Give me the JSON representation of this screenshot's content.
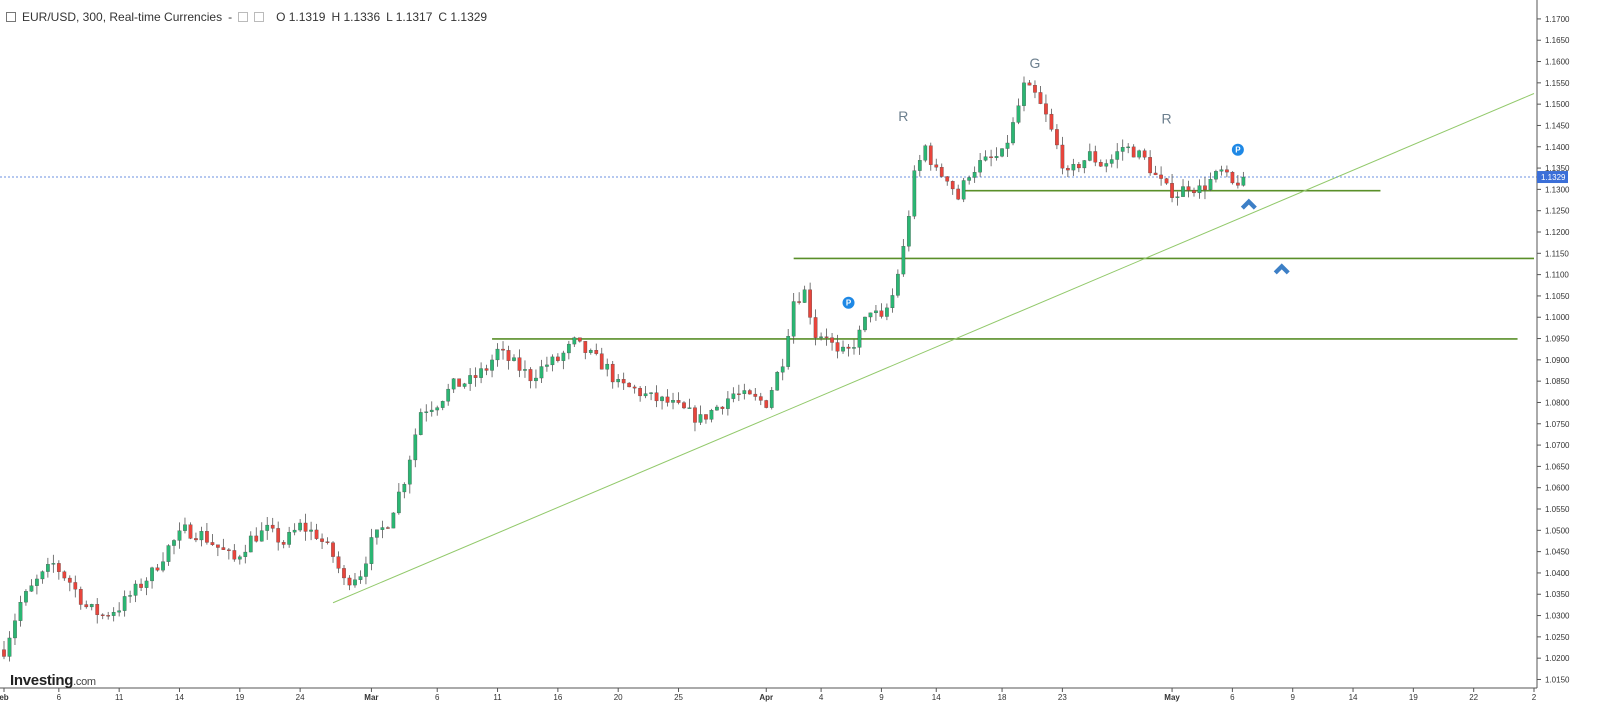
{
  "header": {
    "symbol_line": "EUR/USD, 300, Real-time Currencies",
    "open": "O 1.1319",
    "high": "H 1.1336",
    "low": "L 1.1317",
    "close": "C 1.1329"
  },
  "logo": {
    "brand": "Investing",
    "suffix": ".com"
  },
  "colors": {
    "up": "#2bb673",
    "down": "#e8453c",
    "support_lines": "#5a8f29",
    "trendline": "#92c96b",
    "price_line": "#3b6fd8",
    "arrow": "#3d7fc6",
    "pivot": "#1e88e5",
    "letters": "#6c7f8e"
  },
  "chart_data": {
    "type": "candlestick",
    "symbol": "EUR/USD",
    "current_price": 1.1329,
    "price_label": "1.1329",
    "y_ticks": [
      "1.1700",
      "1.1650",
      "1.1600",
      "1.1550",
      "1.1500",
      "1.1450",
      "1.1400",
      "1.1350",
      "1.1300",
      "1.1250",
      "1.1200",
      "1.1150",
      "1.1100",
      "1.1050",
      "1.1000",
      "1.0950",
      "1.0900",
      "1.0850",
      "1.0800",
      "1.0750",
      "1.0700",
      "1.0650",
      "1.0600",
      "1.0550",
      "1.0500",
      "1.0450",
      "1.0400",
      "1.0350",
      "1.0300",
      "1.0250",
      "1.0200",
      "1.0150"
    ],
    "ylim": [
      1.013,
      1.1735
    ],
    "x_ticks": [
      {
        "label": "eb",
        "i": 0
      },
      {
        "label": "6",
        "i": 10
      },
      {
        "label": "11",
        "i": 21
      },
      {
        "label": "14",
        "i": 32
      },
      {
        "label": "19",
        "i": 43
      },
      {
        "label": "24",
        "i": 54
      },
      {
        "label": "Mar",
        "i": 67
      },
      {
        "label": "6",
        "i": 79
      },
      {
        "label": "11",
        "i": 90
      },
      {
        "label": "16",
        "i": 101
      },
      {
        "label": "20",
        "i": 112
      },
      {
        "label": "25",
        "i": 123
      },
      {
        "label": "Apr",
        "i": 139
      },
      {
        "label": "4",
        "i": 149
      },
      {
        "label": "9",
        "i": 160
      },
      {
        "label": "14",
        "i": 170
      },
      {
        "label": "18",
        "i": 182
      },
      {
        "label": "23",
        "i": 193
      },
      {
        "label": "May",
        "i": 213
      },
      {
        "label": "6",
        "i": 224
      },
      {
        "label": "9",
        "i": 235
      },
      {
        "label": "14",
        "i": 246
      },
      {
        "label": "19",
        "i": 257
      },
      {
        "label": "22",
        "i": 268
      },
      {
        "label": "2",
        "i": 279
      }
    ],
    "slots_total": 279,
    "close_path": [
      [
        0,
        1.022
      ],
      [
        3,
        1.033
      ],
      [
        6,
        1.038
      ],
      [
        9,
        1.042
      ],
      [
        12,
        1.038
      ],
      [
        15,
        1.032
      ],
      [
        18,
        1.03
      ],
      [
        21,
        1.032
      ],
      [
        24,
        1.036
      ],
      [
        27,
        1.04
      ],
      [
        30,
        1.046
      ],
      [
        33,
        1.05
      ],
      [
        36,
        1.049
      ],
      [
        39,
        1.046
      ],
      [
        42,
        1.043
      ],
      [
        45,
        1.048
      ],
      [
        48,
        1.05
      ],
      [
        51,
        1.047
      ],
      [
        54,
        1.051
      ],
      [
        57,
        1.049
      ],
      [
        60,
        1.044
      ],
      [
        62,
        1.038
      ],
      [
        65,
        1.04
      ],
      [
        67,
        1.047
      ],
      [
        70,
        1.052
      ],
      [
        73,
        1.062
      ],
      [
        76,
        1.078
      ],
      [
        79,
        1.08
      ],
      [
        82,
        1.084
      ],
      [
        85,
        1.085
      ],
      [
        88,
        1.088
      ],
      [
        90,
        1.092
      ],
      [
        93,
        1.089
      ],
      [
        96,
        1.086
      ],
      [
        99,
        1.089
      ],
      [
        101,
        1.09
      ],
      [
        104,
        1.094
      ],
      [
        107,
        1.091
      ],
      [
        110,
        1.088
      ],
      [
        112,
        1.084
      ],
      [
        115,
        1.083
      ],
      [
        118,
        1.081
      ],
      [
        121,
        1.08
      ],
      [
        124,
        1.078
      ],
      [
        127,
        1.076
      ],
      [
        130,
        1.079
      ],
      [
        133,
        1.082
      ],
      [
        136,
        1.081
      ],
      [
        139,
        1.08
      ],
      [
        142,
        1.09
      ],
      [
        144,
        1.104
      ],
      [
        146,
        1.106
      ],
      [
        148,
        1.096
      ],
      [
        150,
        1.096
      ],
      [
        152,
        1.091
      ],
      [
        154,
        1.092
      ],
      [
        156,
        1.096
      ],
      [
        158,
        1.102
      ],
      [
        160,
        1.099
      ],
      [
        162,
        1.105
      ],
      [
        164,
        1.116
      ],
      [
        166,
        1.133
      ],
      [
        168,
        1.14
      ],
      [
        170,
        1.134
      ],
      [
        172,
        1.133
      ],
      [
        174,
        1.128
      ],
      [
        176,
        1.134
      ],
      [
        178,
        1.136
      ],
      [
        180,
        1.137
      ],
      [
        182,
        1.138
      ],
      [
        184,
        1.145
      ],
      [
        186,
        1.154
      ],
      [
        188,
        1.152
      ],
      [
        190,
        1.147
      ],
      [
        192,
        1.14
      ],
      [
        194,
        1.133
      ],
      [
        196,
        1.136
      ],
      [
        198,
        1.138
      ],
      [
        200,
        1.136
      ],
      [
        202,
        1.137
      ],
      [
        204,
        1.14
      ],
      [
        206,
        1.139
      ],
      [
        208,
        1.137
      ],
      [
        210,
        1.133
      ],
      [
        212,
        1.13
      ],
      [
        214,
        1.129
      ],
      [
        216,
        1.131
      ],
      [
        218,
        1.13
      ],
      [
        220,
        1.132
      ],
      [
        222,
        1.134
      ],
      [
        224,
        1.131
      ],
      [
        226,
        1.1329
      ]
    ],
    "support_lines": [
      {
        "price": 1.0949,
        "from_i": 89,
        "to_i": 276
      },
      {
        "price": 1.1138,
        "from_i": 144,
        "to_i": 279
      },
      {
        "price": 1.1297,
        "from_i": 175,
        "to_i": 251
      }
    ],
    "trendline": {
      "from": [
        60,
        1.033
      ],
      "to": [
        279,
        1.1525
      ]
    },
    "annotations": [
      {
        "text": "R",
        "i": 164,
        "price": 1.146
      },
      {
        "text": "G",
        "i": 188,
        "price": 1.1585
      },
      {
        "text": "R",
        "i": 212,
        "price": 1.1455
      }
    ],
    "pivots": [
      {
        "text": "P",
        "i": 154,
        "price": 1.1034
      },
      {
        "text": "P",
        "i": 225,
        "price": 1.1393
      }
    ],
    "arrows": [
      {
        "i": 227,
        "price": 1.1262
      },
      {
        "i": 233,
        "price": 1.111
      }
    ]
  }
}
